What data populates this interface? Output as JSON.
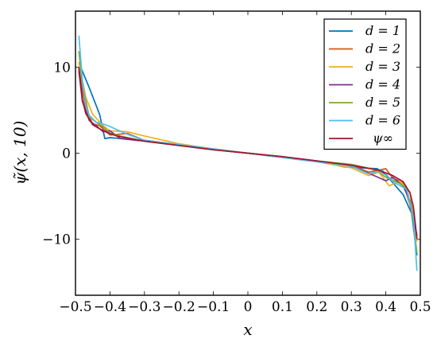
{
  "chart_data": {
    "type": "line",
    "title": "",
    "xlabel": "x",
    "ylabel": "ψ̃(x, 10)",
    "xlim": [
      -0.5,
      0.5
    ],
    "ylim": [
      -16.5,
      16.5
    ],
    "xticks": [
      -0.5,
      -0.4,
      -0.3,
      -0.2,
      -0.1,
      0,
      0.1,
      0.2,
      0.3,
      0.4,
      0.5
    ],
    "xtick_labels": [
      "−0.5",
      "−0.4",
      "−0.3",
      "−0.2",
      "−0.1",
      "0",
      "0.1",
      "0.2",
      "0.3",
      "0.4",
      "0.5"
    ],
    "yticks": [
      -10,
      0,
      10
    ],
    "ytick_labels": [
      "−10",
      "0",
      "10"
    ],
    "grid": false,
    "legend_position": "top-right",
    "series": [
      {
        "name": "d = 1",
        "color": "#0072BD",
        "x": [
          -0.49,
          -0.46,
          -0.43,
          -0.415,
          -0.4,
          -0.3,
          -0.2,
          -0.1,
          0,
          0.1,
          0.2,
          0.28,
          0.375,
          0.4,
          0.45,
          0.475,
          0.49
        ],
        "y": [
          10.5,
          7.6,
          4.5,
          1.7,
          1.8,
          1.5,
          1.0,
          0.5,
          0.0,
          -0.5,
          -0.9,
          -1.6,
          -1.8,
          -2.5,
          -4.8,
          -7.0,
          -11.8
        ]
      },
      {
        "name": "d = 2",
        "color": "#D95319",
        "x": [
          -0.49,
          -0.47,
          -0.45,
          -0.43,
          -0.4,
          -0.35,
          -0.3,
          -0.2,
          -0.1,
          0,
          0.1,
          0.2,
          0.3,
          0.35,
          0.4,
          0.42,
          0.45,
          0.47,
          0.49
        ],
        "y": [
          9.8,
          5.0,
          3.4,
          3.2,
          2.1,
          2.3,
          1.5,
          1.0,
          0.5,
          0.0,
          -0.5,
          -0.9,
          -1.4,
          -2.2,
          -1.8,
          -2.9,
          -3.4,
          -6.0,
          -10.0
        ]
      },
      {
        "name": "d = 3",
        "color": "#EDB120",
        "x": [
          -0.49,
          -0.47,
          -0.45,
          -0.42,
          -0.4,
          -0.35,
          -0.3,
          -0.2,
          -0.1,
          0,
          0.1,
          0.2,
          0.3,
          0.35,
          0.38,
          0.41,
          0.44,
          0.47,
          0.49
        ],
        "y": [
          10.5,
          6.5,
          4.5,
          3.2,
          2.6,
          2.5,
          2.0,
          1.1,
          0.5,
          0.0,
          -0.5,
          -1.0,
          -1.7,
          -2.6,
          -2.2,
          -3.8,
          -3.2,
          -4.5,
          -10.2
        ]
      },
      {
        "name": "d = 4",
        "color": "#7E2F8E",
        "x": [
          -0.49,
          -0.48,
          -0.46,
          -0.44,
          -0.42,
          -0.4,
          -0.37,
          -0.3,
          -0.2,
          -0.1,
          0,
          0.1,
          0.2,
          0.3,
          0.36,
          0.4,
          0.42,
          0.45,
          0.47,
          0.49
        ],
        "y": [
          9.5,
          6.0,
          3.8,
          3.2,
          2.5,
          2.6,
          1.7,
          1.4,
          0.9,
          0.4,
          0.0,
          -0.4,
          -0.9,
          -1.5,
          -2.5,
          -3.2,
          -2.8,
          -3.8,
          -5.5,
          -9.5
        ]
      },
      {
        "name": "d = 5",
        "color": "#77AC30",
        "x": [
          -0.49,
          -0.48,
          -0.46,
          -0.44,
          -0.42,
          -0.4,
          -0.37,
          -0.3,
          -0.2,
          -0.1,
          0,
          0.1,
          0.2,
          0.3,
          0.37,
          0.4,
          0.43,
          0.46,
          0.475,
          0.49
        ],
        "y": [
          11.8,
          8.0,
          4.2,
          3.6,
          3.1,
          2.3,
          2.0,
          1.4,
          0.9,
          0.4,
          0.0,
          -0.4,
          -0.9,
          -1.3,
          -1.9,
          -2.8,
          -3.3,
          -4.0,
          -6.5,
          -11.5
        ]
      },
      {
        "name": "d = 6",
        "color": "#4DBEEE",
        "x": [
          -0.49,
          -0.48,
          -0.47,
          -0.46,
          -0.44,
          -0.42,
          -0.4,
          -0.35,
          -0.3,
          -0.2,
          -0.1,
          0,
          0.1,
          0.2,
          0.3,
          0.35,
          0.39,
          0.42,
          0.46,
          0.48,
          0.49
        ],
        "y": [
          13.6,
          8.5,
          5.5,
          4.4,
          3.6,
          3.4,
          3.1,
          2.2,
          1.5,
          1.0,
          0.5,
          0.0,
          -0.5,
          -1.0,
          -1.5,
          -2.4,
          -2.0,
          -3.3,
          -4.2,
          -7.5,
          -13.6
        ]
      },
      {
        "name": "ψ∞",
        "color": "#A2142F",
        "x": [
          -0.49,
          -0.48,
          -0.47,
          -0.45,
          -0.42,
          -0.38,
          -0.3,
          -0.2,
          -0.1,
          0,
          0.1,
          0.2,
          0.3,
          0.38,
          0.42,
          0.45,
          0.47,
          0.48,
          0.49
        ],
        "y": [
          9.9,
          6.2,
          4.6,
          3.3,
          2.6,
          2.0,
          1.4,
          0.9,
          0.4,
          0.0,
          -0.4,
          -0.9,
          -1.4,
          -2.0,
          -2.6,
          -3.3,
          -4.6,
          -6.2,
          -9.9
        ]
      }
    ]
  }
}
